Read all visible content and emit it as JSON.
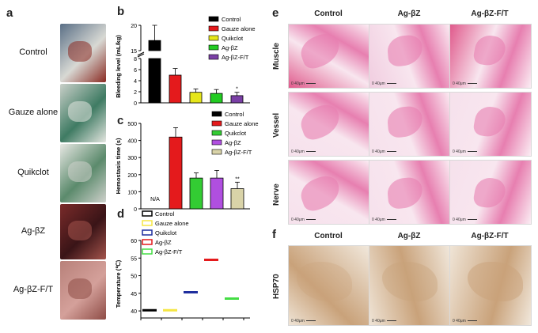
{
  "panel_a": {
    "letter": "a",
    "rows": [
      {
        "label": "Control",
        "top": 30,
        "h": 74,
        "colors": [
          "#5a6f86",
          "#d8d9d4",
          "#8a2a22"
        ]
      },
      {
        "label": "Gauze alone",
        "top": 106,
        "h": 74,
        "colors": [
          "#c9cfc8",
          "#3f7b63",
          "#e4e6e0"
        ]
      },
      {
        "label": "Quikclot",
        "top": 182,
        "h": 74,
        "colors": [
          "#e7e7e3",
          "#5b8a6c",
          "#cfd1cc"
        ]
      },
      {
        "label": "Ag-βZ",
        "top": 258,
        "h": 70,
        "colors": [
          "#7a2b2a",
          "#3a1417",
          "#a4544c"
        ]
      },
      {
        "label": "Ag-βZ-F/T",
        "top": 330,
        "h": 74,
        "colors": [
          "#b8817a",
          "#d4a09a",
          "#8e4c46"
        ]
      }
    ]
  },
  "panel_b": {
    "letter": "b",
    "ylabel": "Bleeding level (mL/kg)",
    "yticks": [
      "0",
      "2",
      "4",
      "6",
      "8",
      "15",
      "20"
    ],
    "legend": [
      "Control",
      "Gauze alone",
      "Quikclot",
      "Ag-βZ",
      "Ag-βZ-F/T"
    ],
    "star": "*"
  },
  "panel_c": {
    "letter": "c",
    "ylabel": "Hemostasis time (s)",
    "yticks": [
      "0",
      "100",
      "200",
      "300",
      "400",
      "500"
    ],
    "na": "N/A",
    "stars": "**",
    "legend": [
      "Control",
      "Gauze alone",
      "Quikclot",
      "Ag-βZ",
      "Ag-βZ-F/T"
    ]
  },
  "panel_d": {
    "letter": "d",
    "ylabel": "Temperature (℃)",
    "yticks": [
      "40",
      "45",
      "50",
      "55",
      "60"
    ],
    "legend": [
      "Control",
      "Gauze alone",
      "Quikclot",
      "Ag-βZ",
      "Ag-βZ-F/T"
    ]
  },
  "panel_e": {
    "letter": "e",
    "cols": [
      "Control",
      "Ag-βZ",
      "Ag-βZ-F/T"
    ],
    "rows": [
      "Muscle",
      "Vessel",
      "Nerve"
    ],
    "scale": "0 40μm"
  },
  "panel_f": {
    "letter": "f",
    "cols": [
      "Control",
      "Ag-βZ",
      "Ag-βZ-F/T"
    ],
    "row": "HSP70",
    "scale": "0 40μm"
  },
  "colors": {
    "control": "#000000",
    "gauze": "#e41a1c",
    "quikclot": "#e6e61a",
    "agbz": "#22cc22",
    "agbzft": "#7a3fa5",
    "c_quikclot": "#33cc33",
    "c_agbz": "#b04fe0",
    "c_agbzft": "#d9d3a8",
    "d_gauze": "#f5e642",
    "d_quikclot": "#1f2e9e",
    "d_agbz": "#e41a1c",
    "d_agbzft": "#44dd44",
    "he_pink": "#e77fb0",
    "ihc_brown": "#c9a27a"
  },
  "chart_data": [
    {
      "type": "bar",
      "panel": "b",
      "categories": [
        "Control",
        "Gauze alone",
        "Quikclot",
        "Ag-βZ",
        "Ag-βZ-F/T"
      ],
      "values": [
        17,
        5,
        1.9,
        1.7,
        1.3
      ],
      "errors": [
        3,
        1.2,
        0.6,
        0.7,
        0.6
      ],
      "ylabel": "Bleeding level (mL/kg)",
      "ylim": [
        0,
        20
      ],
      "axis_break": [
        8,
        15
      ]
    },
    {
      "type": "bar",
      "panel": "c",
      "categories": [
        "Control",
        "Gauze alone",
        "Quikclot",
        "Ag-βZ",
        "Ag-βZ-F/T"
      ],
      "values": [
        null,
        420,
        180,
        180,
        118
      ],
      "errors": [
        null,
        55,
        30,
        45,
        38
      ],
      "ylabel": "Hemostasis time (s)",
      "ylim": [
        0,
        500
      ]
    },
    {
      "type": "scatter",
      "panel": "d",
      "categories": [
        "Control",
        "Gauze alone",
        "Quikclot",
        "Ag-βZ",
        "Ag-βZ-F/T"
      ],
      "values": [
        40.2,
        40.2,
        45.3,
        54.5,
        43.5
      ],
      "ylabel": "Temperature (℃)",
      "ylim": [
        38,
        60
      ]
    }
  ]
}
